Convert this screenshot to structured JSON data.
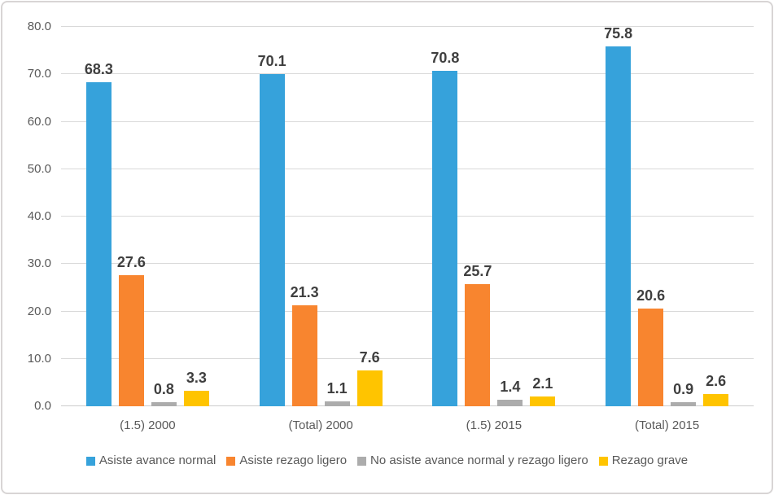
{
  "chart_data": {
    "type": "bar",
    "categories": [
      "(1.5) 2000",
      "(Total) 2000",
      "(1.5) 2015",
      "(Total) 2015"
    ],
    "series": [
      {
        "name": "Asiste avance normal",
        "color": "#36A2DB",
        "values": [
          68.3,
          70.1,
          70.8,
          75.8
        ]
      },
      {
        "name": "Asiste rezago ligero",
        "color": "#F8852F",
        "values": [
          27.6,
          21.3,
          25.7,
          20.6
        ]
      },
      {
        "name": "No asiste avance normal y rezago ligero",
        "color": "#ACACAC",
        "values": [
          0.8,
          1.1,
          1.4,
          0.9
        ]
      },
      {
        "name": "Rezago grave",
        "color": "#FFC400",
        "values": [
          3.3,
          7.6,
          2.1,
          2.6
        ]
      }
    ],
    "ylim": [
      0,
      80
    ],
    "ytick_step": 10,
    "ytick_labels": [
      "0.0",
      "10.0",
      "20.0",
      "30.0",
      "40.0",
      "50.0",
      "60.0",
      "70.0",
      "80.0"
    ],
    "grid": true,
    "data_labels": true,
    "data_label_decimals": 1,
    "legend_position": "bottom"
  }
}
